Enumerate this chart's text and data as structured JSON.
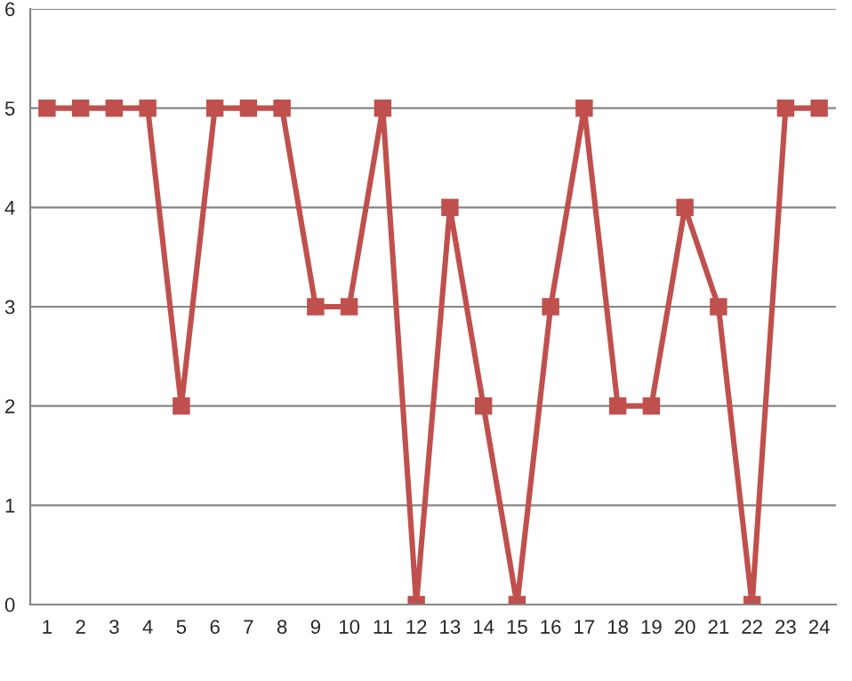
{
  "chart_data": {
    "type": "line",
    "categories": [
      "1",
      "2",
      "3",
      "4",
      "5",
      "6",
      "7",
      "8",
      "9",
      "10",
      "11",
      "12",
      "13",
      "14",
      "15",
      "16",
      "17",
      "18",
      "19",
      "20",
      "21",
      "22",
      "23",
      "24"
    ],
    "series": [
      {
        "color": "#c0504d",
        "values": [
          5,
          5,
          5,
          5,
          2,
          5,
          5,
          5,
          3,
          3,
          5,
          0,
          4,
          2,
          0,
          3,
          5,
          2,
          2,
          4,
          3,
          0,
          5,
          5
        ]
      }
    ],
    "ylim": [
      0,
      6
    ],
    "yticks": [
      0,
      1,
      2,
      3,
      4,
      5,
      6
    ],
    "grid": "y",
    "marker": "square",
    "line_style": "solid"
  }
}
